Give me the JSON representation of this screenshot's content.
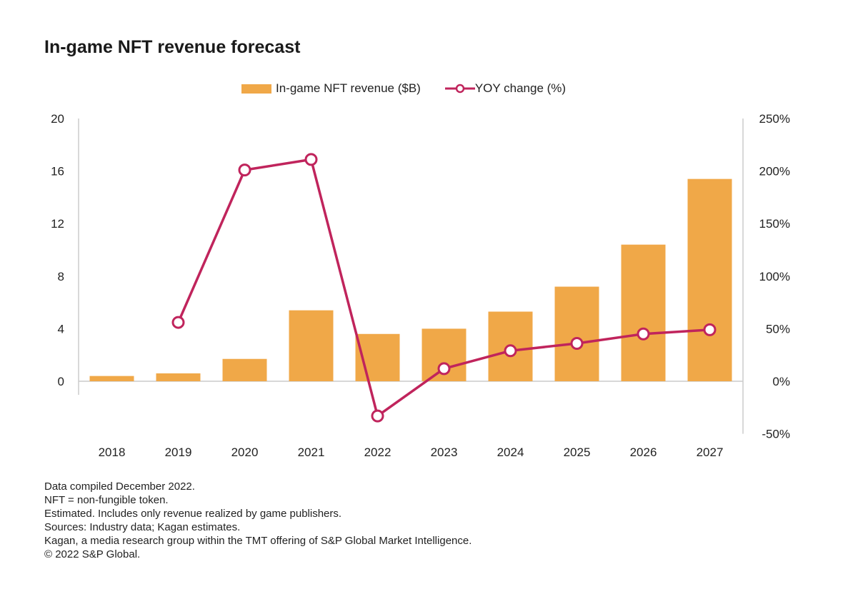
{
  "chart_data": {
    "type": "bar+line",
    "title": "In-game NFT revenue forecast",
    "categories": [
      "2018",
      "2019",
      "2020",
      "2021",
      "2022",
      "2023",
      "2024",
      "2025",
      "2026",
      "2027"
    ],
    "series": [
      {
        "name": "In-game NFT revenue ($B)",
        "type": "bar",
        "axis": "left",
        "color": "#f0a848",
        "values": [
          0.4,
          0.6,
          1.7,
          5.4,
          3.6,
          4.0,
          5.3,
          7.2,
          10.4,
          15.4
        ]
      },
      {
        "name": "YOY change (%)",
        "type": "line",
        "axis": "right",
        "color": "#c0245c",
        "values": [
          null,
          56,
          201,
          211,
          -33,
          12,
          29,
          36,
          45,
          49
        ]
      }
    ],
    "left_axis": {
      "ylim": [
        0,
        20
      ],
      "ticks": [
        "0",
        "4",
        "8",
        "12",
        "16",
        "20"
      ],
      "tick_values": [
        0,
        4,
        8,
        12,
        16,
        20
      ]
    },
    "right_axis": {
      "ylim": [
        -50,
        250
      ],
      "ticks": [
        "-50%",
        "0%",
        "50%",
        "100%",
        "150%",
        "200%",
        "250%"
      ],
      "tick_values": [
        -50,
        0,
        50,
        100,
        150,
        200,
        250
      ]
    },
    "legend_position": "top",
    "grid": false
  },
  "notes": [
    "Data compiled December 2022.",
    "NFT = non-fungible token.",
    "Estimated. Includes only revenue realized by game publishers.",
    "Sources: Industry data; Kagan estimates.",
    "Kagan, a media research group within the TMT offering of S&P Global Market Intelligence.",
    "© 2022 S&P Global."
  ]
}
